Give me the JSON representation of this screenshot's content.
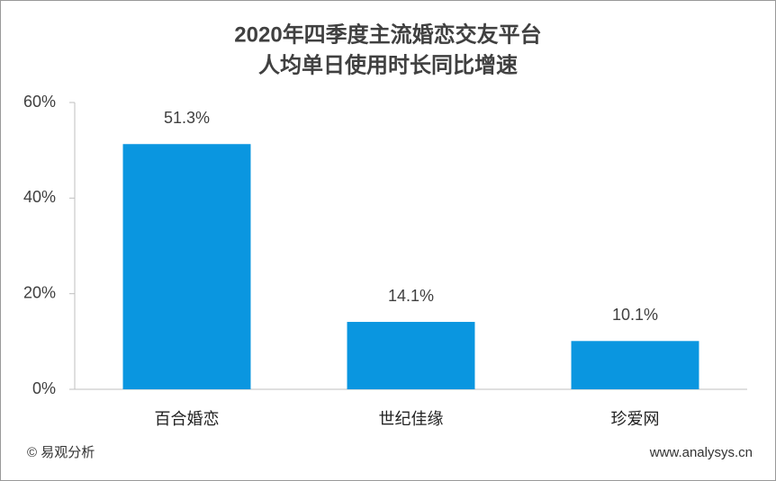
{
  "chart_data": {
    "type": "bar",
    "title": [
      "2020年四季度主流婚恋交友平台",
      "人均单日使用时长同比增速"
    ],
    "categories": [
      "百合婚恋",
      "世纪佳缘",
      "珍爱网"
    ],
    "values": [
      51.3,
      14.1,
      10.1
    ],
    "value_labels": [
      "51.3%",
      "14.1%",
      "10.1%"
    ],
    "color": "#0a96e0",
    "ylim": [
      0,
      60
    ],
    "yticks": [
      {
        "value": 0,
        "label": "0%"
      },
      {
        "value": 20,
        "label": "20%"
      },
      {
        "value": 40,
        "label": "40%"
      },
      {
        "value": 60,
        "label": "60%"
      }
    ],
    "grid": false
  },
  "footer": {
    "source": "© 易观分析",
    "website": "www.analysys.cn"
  }
}
